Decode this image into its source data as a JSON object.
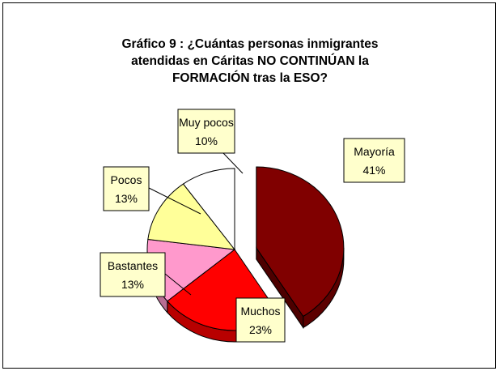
{
  "chart_data": {
    "type": "pie",
    "title_lines": [
      "Gráfico 9 : ¿Cuántas personas inmigrantes",
      "atendidas en Cáritas NO CONTINÚAN la",
      "FORMACIÓN tras la ESO?"
    ],
    "slices": [
      {
        "label": "Mayoría",
        "value": 41,
        "percent_label": "41%",
        "color": "#800000",
        "exploded": true
      },
      {
        "label": "Muchos",
        "value": 23,
        "percent_label": "23%",
        "color": "#ff0000"
      },
      {
        "label": "Bastantes",
        "value": 13,
        "percent_label": "13%",
        "color": "#ff99cc"
      },
      {
        "label": "Pocos",
        "value": 13,
        "percent_label": "13%",
        "color": "#ffff99"
      },
      {
        "label": "Muy pocos",
        "value": 10,
        "percent_label": "10%",
        "color": "#ffffff"
      }
    ],
    "label_box_color": "#ffffcc"
  }
}
